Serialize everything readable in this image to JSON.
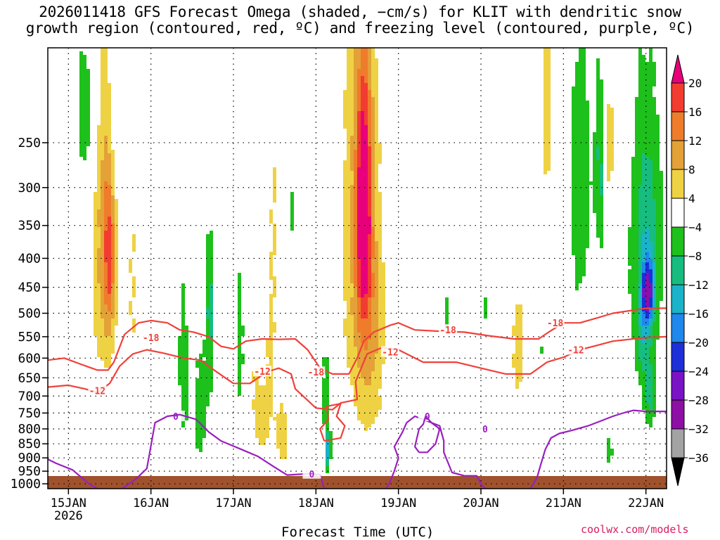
{
  "header": {
    "title_line1": "2026011418 GFS Forecast Omega (shaded, −cm/s) for KLIT with dendritic snow",
    "title_line2": "growth region (contoured, red, ºC) and freezing level (contoured, purple, ºC)"
  },
  "footer": {
    "credit": "coolwx.com/models"
  },
  "chart_data": {
    "type": "heatmap",
    "title": "2026011418 GFS Forecast Omega (shaded, −cm/s) for KLIT with dendritic snow growth region (contoured, red, ºC) and freezing level (contoured, purple, ºC)",
    "xlabel": "Forecast Time (UTC)",
    "ylabel": "",
    "x_ticks": [
      "15JAN",
      "16JAN",
      "17JAN",
      "18JAN",
      "19JAN",
      "20JAN",
      "21JAN",
      "22JAN"
    ],
    "x_tick_sublabel": "2026",
    "x_range_days": [
      -0.25,
      7.25
    ],
    "y_range_hpa": [
      1020,
      170
    ],
    "y_ticks": [
      250,
      300,
      350,
      400,
      450,
      500,
      550,
      600,
      650,
      700,
      750,
      800,
      850,
      900,
      950,
      1000
    ],
    "colorbar": {
      "levels": [
        20,
        16,
        12,
        8,
        4,
        -4,
        -8,
        -12,
        -16,
        -20,
        -24,
        -28,
        -32,
        -36
      ],
      "colors": [
        "#e8007a",
        "#f23c30",
        "#ef7c2a",
        "#e3a138",
        "#efd244",
        "#ffffff",
        "#1ec01b",
        "#16bd7e",
        "#1ab3c9",
        "#1e88ed",
        "#1d2fd9",
        "#7a12c6",
        "#8e0fa6",
        "#a3a3a3",
        "#000000"
      ]
    },
    "omega_regions": [
      {
        "x": 0.48,
        "p": 380,
        "sx": 0.07,
        "sp": 150,
        "v": 14
      },
      {
        "x": 0.5,
        "p": 400,
        "sx": 0.04,
        "sp": 60,
        "v": 6
      },
      {
        "x": 0.35,
        "p": 430,
        "sx": 0.05,
        "sp": 170,
        "v": 5
      },
      {
        "x": 0.78,
        "p": 460,
        "sx": 0.12,
        "sp": 260,
        "v": 4
      },
      {
        "x": 1.45,
        "p": 400,
        "sx": 0.06,
        "sp": 160,
        "v": 3
      },
      {
        "x": 1.75,
        "p": 400,
        "sx": 0.05,
        "sp": 180,
        "v": 3
      },
      {
        "x": 2.12,
        "p": 300,
        "sx": 0.05,
        "sp": 140,
        "v": 4
      },
      {
        "x": 2.5,
        "p": 330,
        "sx": 0.1,
        "sp": 180,
        "v": 4
      },
      {
        "x": 2.35,
        "p": 700,
        "sx": 0.1,
        "sp": 170,
        "v": 7
      },
      {
        "x": 2.6,
        "p": 830,
        "sx": 0.06,
        "sp": 90,
        "v": 6
      },
      {
        "x": 1.9,
        "p": 760,
        "sx": 0.12,
        "sp": 180,
        "v": 3
      },
      {
        "x": 3.05,
        "p": 480,
        "sx": 0.08,
        "sp": 300,
        "v": 4
      },
      {
        "x": 3.4,
        "p": 370,
        "sx": 0.12,
        "sp": 250,
        "v": 3
      },
      {
        "x": 3.58,
        "p": 330,
        "sx": 0.06,
        "sp": 110,
        "v": 19
      },
      {
        "x": 3.58,
        "p": 380,
        "sx": 0.13,
        "sp": 250,
        "v": 9
      },
      {
        "x": 3.7,
        "p": 560,
        "sx": 0.12,
        "sp": 180,
        "v": 5
      },
      {
        "x": 3.95,
        "p": 300,
        "sx": 0.06,
        "sp": 170,
        "v": 3
      },
      {
        "x": 4.35,
        "p": 280,
        "sx": 0.05,
        "sp": 140,
        "v": 3
      },
      {
        "x": 4.72,
        "p": 240,
        "sx": 0.05,
        "sp": 100,
        "v": 3
      },
      {
        "x": 5.45,
        "p": 580,
        "sx": 0.06,
        "sp": 110,
        "v": 6
      },
      {
        "x": 5.0,
        "p": 330,
        "sx": 0.04,
        "sp": 40,
        "v": 3
      },
      {
        "x": 6.7,
        "p": 230,
        "sx": 0.05,
        "sp": 80,
        "v": 4
      },
      {
        "x": 5.8,
        "p": 190,
        "sx": 0.05,
        "sp": 100,
        "v": 7
      },
      {
        "x": 6.55,
        "p": 220,
        "sx": 0.06,
        "sp": 80,
        "v": 3
      },
      {
        "x": 6.55,
        "p": 260,
        "sx": 0.03,
        "sp": 30,
        "v": 6
      },
      {
        "x": 5.85,
        "p": 820,
        "sx": 0.05,
        "sp": 80,
        "v": 4
      },
      {
        "x": 6.9,
        "p": 420,
        "sx": 0.04,
        "sp": 60,
        "v": 3
      },
      {
        "x": 0.2,
        "p": 220,
        "sx": 0.08,
        "sp": 60,
        "v": -6
      },
      {
        "x": 0.55,
        "p": 220,
        "sx": 0.05,
        "sp": 70,
        "v": -5
      },
      {
        "x": 1.4,
        "p": 600,
        "sx": 0.05,
        "sp": 180,
        "v": -8
      },
      {
        "x": 1.6,
        "p": 740,
        "sx": 0.06,
        "sp": 140,
        "v": -7
      },
      {
        "x": 1.72,
        "p": 500,
        "sx": 0.04,
        "sp": 140,
        "v": -12
      },
      {
        "x": 2.08,
        "p": 520,
        "sx": 0.05,
        "sp": 220,
        "v": -7
      },
      {
        "x": 2.35,
        "p": 480,
        "sx": 0.04,
        "sp": 180,
        "v": -6
      },
      {
        "x": 2.7,
        "p": 330,
        "sx": 0.03,
        "sp": 110,
        "v": -5
      },
      {
        "x": 3.05,
        "p": 450,
        "sx": 0.05,
        "sp": 130,
        "v": -5
      },
      {
        "x": 3.12,
        "p": 700,
        "sx": 0.05,
        "sp": 130,
        "v": -8
      },
      {
        "x": 3.15,
        "p": 880,
        "sx": 0.02,
        "sp": 50,
        "v": -14
      },
      {
        "x": 3.85,
        "p": 180,
        "sx": 0.03,
        "sp": 40,
        "v": -5
      },
      {
        "x": 4.6,
        "p": 500,
        "sx": 0.03,
        "sp": 40,
        "v": -6
      },
      {
        "x": 5.05,
        "p": 490,
        "sx": 0.03,
        "sp": 25,
        "v": -6
      },
      {
        "x": 6.2,
        "p": 300,
        "sx": 0.1,
        "sp": 140,
        "v": -7
      },
      {
        "x": 6.45,
        "p": 280,
        "sx": 0.05,
        "sp": 80,
        "v": -9
      },
      {
        "x": 7.0,
        "p": 390,
        "sx": 0.14,
        "sp": 150,
        "v": -12
      },
      {
        "x": 7.02,
        "p": 460,
        "sx": 0.05,
        "sp": 40,
        "v": -20
      },
      {
        "x": 6.95,
        "p": 560,
        "sx": 0.05,
        "sp": 60,
        "v": -6
      },
      {
        "x": 7.05,
        "p": 700,
        "sx": 0.06,
        "sp": 70,
        "v": -9
      },
      {
        "x": 6.55,
        "p": 870,
        "sx": 0.04,
        "sp": 50,
        "v": -6
      },
      {
        "x": 5.75,
        "p": 585,
        "sx": 0.02,
        "sp": 15,
        "v": -6
      }
    ],
    "contours": [
      {
        "name": "dgz -18",
        "color": "#f0413a",
        "label": "-18",
        "label_points": [
          [
            1.0,
            552
          ],
          [
            3.0,
            635
          ],
          [
            4.6,
            535
          ],
          [
            5.9,
            520
          ]
        ],
        "points": [
          [
            -0.25,
            605
          ],
          [
            -0.05,
            600
          ],
          [
            0.15,
            615
          ],
          [
            0.35,
            630
          ],
          [
            0.48,
            630
          ],
          [
            0.55,
            610
          ],
          [
            0.68,
            545
          ],
          [
            0.85,
            520
          ],
          [
            1.0,
            515
          ],
          [
            1.2,
            520
          ],
          [
            1.35,
            535
          ],
          [
            1.52,
            540
          ],
          [
            1.7,
            550
          ],
          [
            1.85,
            572
          ],
          [
            2.0,
            578
          ],
          [
            2.15,
            560
          ],
          [
            2.35,
            555
          ],
          [
            2.55,
            556
          ],
          [
            2.75,
            555
          ],
          [
            2.9,
            580
          ],
          [
            3.05,
            625
          ],
          [
            3.2,
            640
          ],
          [
            3.4,
            640
          ],
          [
            3.5,
            600
          ],
          [
            3.58,
            560
          ],
          [
            3.7,
            540
          ],
          [
            3.9,
            525
          ],
          [
            4.0,
            520
          ],
          [
            4.2,
            535
          ],
          [
            4.5,
            538
          ],
          [
            4.8,
            540
          ],
          [
            5.1,
            548
          ],
          [
            5.4,
            555
          ],
          [
            5.7,
            555
          ],
          [
            5.82,
            540
          ],
          [
            6.0,
            520
          ],
          [
            6.2,
            520
          ],
          [
            6.4,
            510
          ],
          [
            6.6,
            500
          ],
          [
            6.8,
            495
          ],
          [
            7.0,
            490
          ],
          [
            7.25,
            490
          ]
        ]
      },
      {
        "name": "dgz -12",
        "color": "#f0413a",
        "label": "-12",
        "label_points": [
          [
            0.35,
            685
          ],
          [
            2.35,
            633
          ],
          [
            3.9,
            585
          ],
          [
            6.15,
            580
          ]
        ],
        "points": [
          [
            -0.25,
            675
          ],
          [
            0.0,
            670
          ],
          [
            0.2,
            680
          ],
          [
            0.35,
            690
          ],
          [
            0.5,
            665
          ],
          [
            0.62,
            620
          ],
          [
            0.78,
            590
          ],
          [
            0.95,
            580
          ],
          [
            1.15,
            588
          ],
          [
            1.4,
            600
          ],
          [
            1.6,
            605
          ],
          [
            1.8,
            635
          ],
          [
            2.0,
            665
          ],
          [
            2.2,
            665
          ],
          [
            2.4,
            635
          ],
          [
            2.55,
            625
          ],
          [
            2.7,
            640
          ],
          [
            2.75,
            680
          ],
          [
            3.0,
            735
          ],
          [
            3.2,
            740
          ],
          [
            3.3,
            720
          ],
          [
            3.5,
            710
          ],
          [
            3.48,
            660
          ],
          [
            3.62,
            590
          ],
          [
            3.8,
            575
          ],
          [
            4.0,
            580
          ],
          [
            4.3,
            610
          ],
          [
            4.7,
            610
          ],
          [
            5.0,
            625
          ],
          [
            5.3,
            640
          ],
          [
            5.6,
            640
          ],
          [
            5.8,
            610
          ],
          [
            6.0,
            598
          ],
          [
            6.2,
            580
          ],
          [
            6.4,
            570
          ],
          [
            6.6,
            560
          ],
          [
            6.85,
            555
          ],
          [
            7.0,
            552
          ],
          [
            7.25,
            550
          ]
        ]
      },
      {
        "name": "dgz -12 small",
        "color": "#f0413a",
        "label": "",
        "label_points": [],
        "points": [
          [
            3.1,
            840
          ],
          [
            3.05,
            800
          ],
          [
            3.15,
            770
          ],
          [
            3.13,
            730
          ],
          [
            3.3,
            722
          ],
          [
            3.25,
            760
          ],
          [
            3.35,
            790
          ],
          [
            3.3,
            830
          ],
          [
            3.1,
            840
          ]
        ]
      },
      {
        "name": "freezing level 0 west",
        "color": "#9a1fbf",
        "label": "0",
        "label_points": [
          [
            1.3,
            760
          ]
        ],
        "points": [
          [
            -0.25,
            905
          ],
          [
            -0.15,
            920
          ],
          [
            0.05,
            945
          ],
          [
            0.25,
            1000
          ],
          [
            0.35,
            1020
          ]
        ]
      },
      {
        "name": "freezing level 0 main",
        "color": "#9a1fbf",
        "label": "0",
        "label_points": [
          [
            2.95,
            960
          ]
        ],
        "points": [
          [
            0.65,
            1020
          ],
          [
            0.82,
            980
          ],
          [
            0.95,
            940
          ],
          [
            0.98,
            890
          ],
          [
            1.05,
            780
          ],
          [
            1.2,
            760
          ],
          [
            1.35,
            755
          ],
          [
            1.55,
            770
          ],
          [
            1.7,
            810
          ],
          [
            1.85,
            840
          ],
          [
            2.1,
            870
          ],
          [
            2.3,
            895
          ],
          [
            2.5,
            935
          ],
          [
            2.65,
            965
          ],
          [
            2.9,
            960
          ],
          [
            3.05,
            963
          ],
          [
            3.1,
            1020
          ]
        ]
      },
      {
        "name": "freezing level 0 east",
        "color": "#9a1fbf",
        "label": "0",
        "label_points": [
          [
            4.35,
            760
          ],
          [
            5.05,
            800
          ]
        ],
        "points": [
          [
            3.85,
            1020
          ],
          [
            3.9,
            990
          ],
          [
            3.95,
            950
          ],
          [
            4.0,
            900
          ],
          [
            3.95,
            860
          ],
          [
            4.05,
            810
          ],
          [
            4.1,
            780
          ],
          [
            4.2,
            760
          ],
          [
            4.3,
            770
          ],
          [
            4.5,
            790
          ],
          [
            4.55,
            840
          ],
          [
            4.55,
            880
          ],
          [
            4.65,
            955
          ],
          [
            4.8,
            968
          ],
          [
            4.95,
            968
          ],
          [
            5.0,
            1000
          ],
          [
            5.05,
            1020
          ]
        ]
      },
      {
        "name": "freezing level 0 far east",
        "color": "#9a1fbf",
        "label": "0",
        "label_points": [],
        "points": [
          [
            4.25,
            880
          ],
          [
            4.2,
            860
          ],
          [
            4.25,
            800
          ],
          [
            4.3,
            785
          ],
          [
            4.33,
            760
          ],
          [
            4.4,
            780
          ],
          [
            4.45,
            790
          ],
          [
            4.5,
            800
          ],
          [
            4.45,
            850
          ],
          [
            4.35,
            880
          ],
          [
            4.25,
            880
          ]
        ]
      },
      {
        "name": "freezing level 0 right",
        "color": "#9a1fbf",
        "label": "",
        "label_points": [],
        "points": [
          [
            5.6,
            1020
          ],
          [
            5.68,
            975
          ],
          [
            5.72,
            930
          ],
          [
            5.78,
            870
          ],
          [
            5.85,
            830
          ],
          [
            5.95,
            815
          ],
          [
            6.1,
            805
          ],
          [
            6.3,
            790
          ],
          [
            6.45,
            775
          ],
          [
            6.6,
            760
          ],
          [
            6.75,
            748
          ],
          [
            6.85,
            742
          ],
          [
            7.0,
            745
          ],
          [
            7.1,
            745
          ],
          [
            7.25,
            745
          ]
        ]
      }
    ]
  }
}
